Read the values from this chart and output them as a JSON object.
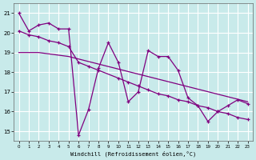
{
  "xlabel": "Windchill (Refroidissement éolien,°C)",
  "bg_color": "#c8eaea",
  "line_color": "#800080",
  "grid_color": "#b0d8d8",
  "xlim": [
    -0.5,
    23.5
  ],
  "ylim": [
    14.5,
    21.5
  ],
  "yticks": [
    15,
    16,
    17,
    18,
    19,
    20,
    21
  ],
  "xticks": [
    0,
    1,
    2,
    3,
    4,
    5,
    6,
    7,
    8,
    9,
    10,
    11,
    12,
    13,
    14,
    15,
    16,
    17,
    18,
    19,
    20,
    21,
    22,
    23
  ],
  "series1_x": [
    0,
    1,
    2,
    3,
    4,
    5,
    6,
    7,
    8,
    9,
    10,
    11,
    12,
    13,
    14,
    15,
    16,
    17,
    18,
    19,
    20,
    21,
    22,
    23
  ],
  "series1_y": [
    21.0,
    20.1,
    20.4,
    20.5,
    20.2,
    20.2,
    14.8,
    16.1,
    18.2,
    19.5,
    18.5,
    16.5,
    17.0,
    19.1,
    18.8,
    18.8,
    18.1,
    16.7,
    16.3,
    15.5,
    16.0,
    16.3,
    16.6,
    16.4
  ],
  "series2_x": [
    0,
    1,
    2,
    3,
    4,
    5,
    6,
    7,
    8,
    10,
    11,
    12,
    13,
    14,
    15,
    16,
    17,
    18,
    19,
    20,
    21,
    22,
    23
  ],
  "series2_y": [
    20.1,
    19.9,
    19.8,
    19.6,
    19.5,
    19.3,
    18.5,
    18.3,
    18.1,
    17.7,
    17.5,
    17.3,
    17.1,
    16.9,
    16.8,
    16.6,
    16.5,
    16.3,
    16.2,
    16.0,
    15.9,
    15.7,
    15.6
  ],
  "trend_x": [
    0,
    2,
    5,
    23
  ],
  "trend_y": [
    19.0,
    19.0,
    18.8,
    16.5
  ]
}
